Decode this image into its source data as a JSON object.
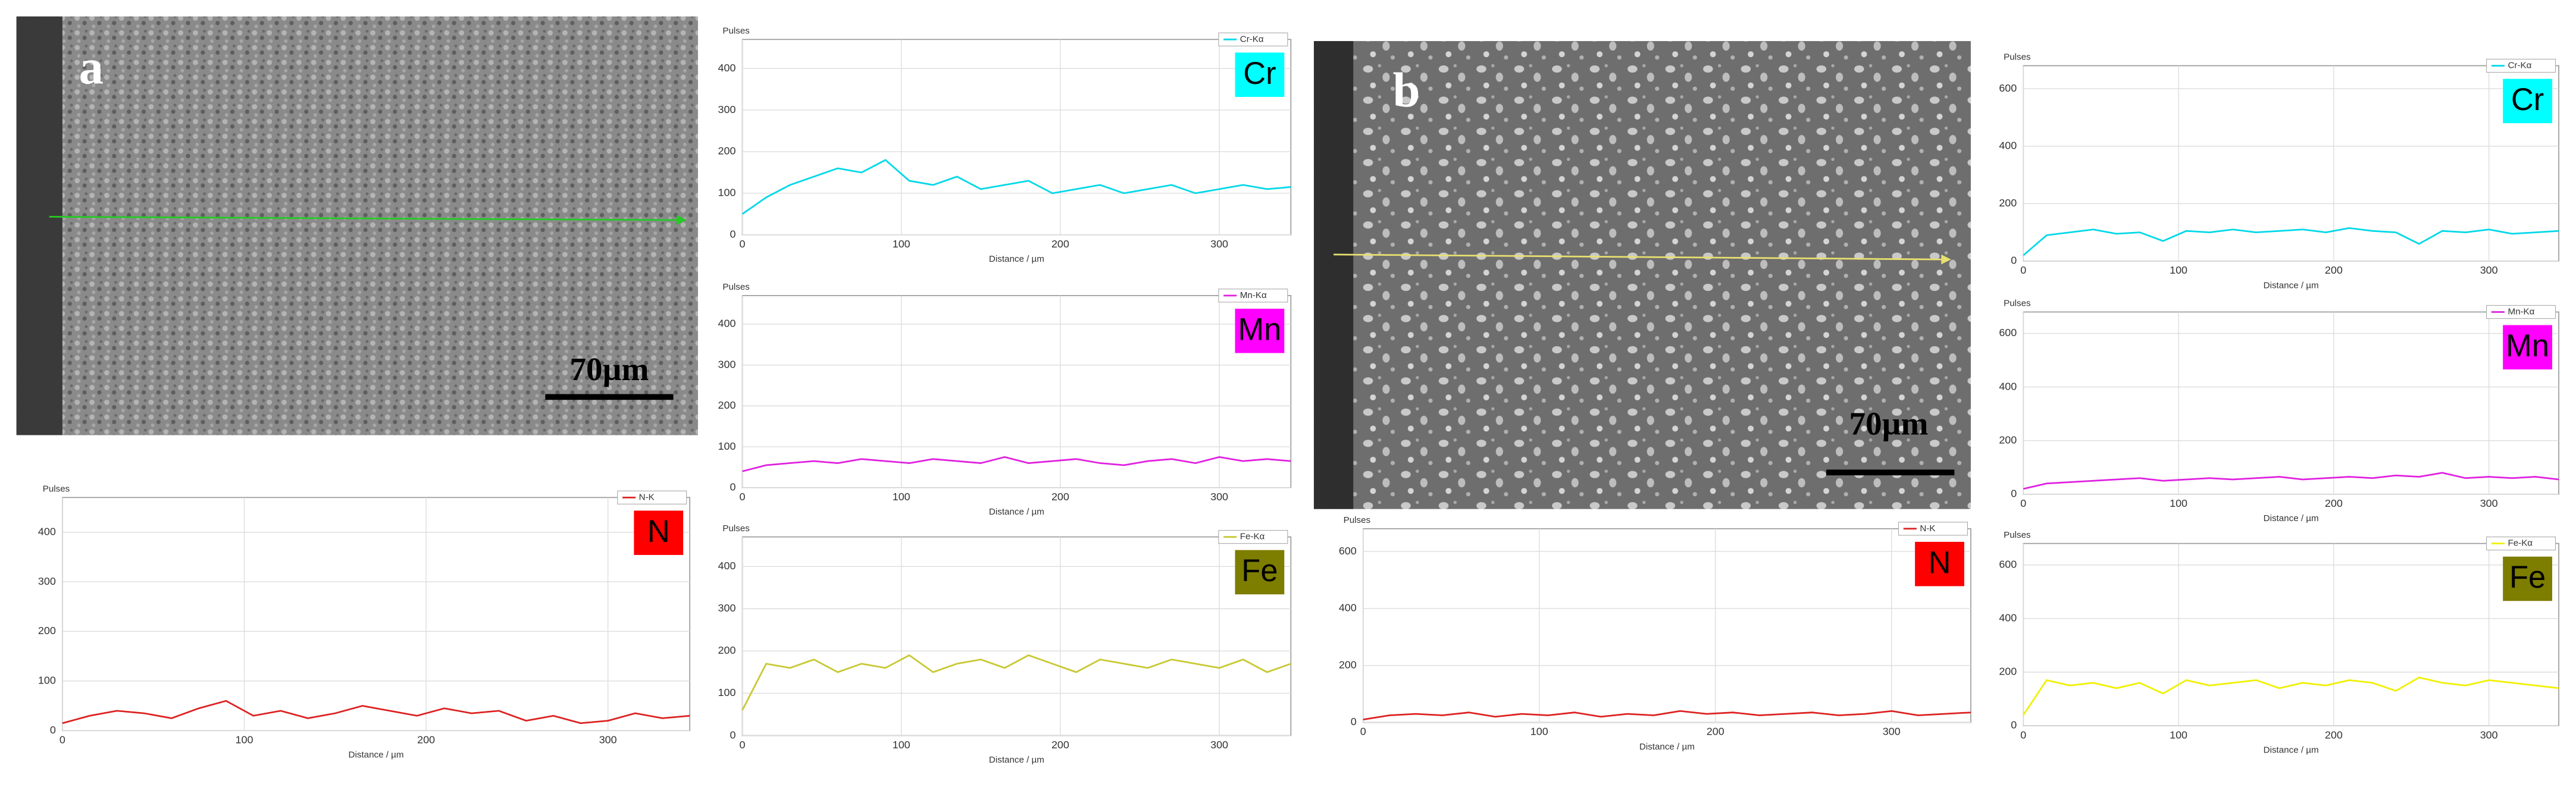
{
  "figure": {
    "panels": [
      {
        "label": "a",
        "scale_bar": "70µm"
      },
      {
        "label": "b",
        "scale_bar": "70µm"
      }
    ]
  },
  "chart_data": [
    {
      "type": "line",
      "ylabel": "Pulses",
      "xlabel": "Distance / µm",
      "element": "Cr",
      "element_color": "#00ffff",
      "x": [
        0,
        15,
        30,
        45,
        60,
        75,
        90,
        105,
        120,
        135,
        150,
        165,
        180,
        195,
        210,
        225,
        240,
        255,
        270,
        285,
        300,
        315,
        330,
        345
      ],
      "series": [
        {
          "name": "Cr-Kα",
          "color": "#00d8e8",
          "values": [
            50,
            90,
            120,
            140,
            160,
            150,
            180,
            130,
            120,
            140,
            110,
            120,
            130,
            100,
            110,
            120,
            100,
            110,
            120,
            100,
            110,
            120,
            110,
            115
          ]
        }
      ],
      "xlim": [
        0,
        345
      ],
      "ylim": [
        0,
        470
      ],
      "xticks": [
        0,
        100,
        200,
        300
      ],
      "yticks": [
        0,
        100,
        200,
        300,
        400
      ],
      "grid": true
    },
    {
      "type": "line",
      "ylabel": "Pulses",
      "xlabel": "Distance / µm",
      "element": "Mn",
      "element_color": "#ff00ff",
      "x": [
        0,
        15,
        30,
        45,
        60,
        75,
        90,
        105,
        120,
        135,
        150,
        165,
        180,
        195,
        210,
        225,
        240,
        255,
        270,
        285,
        300,
        315,
        330,
        345
      ],
      "series": [
        {
          "name": "Mn-Kα",
          "color": "#e020e0",
          "values": [
            40,
            55,
            60,
            65,
            60,
            70,
            65,
            60,
            70,
            65,
            60,
            75,
            60,
            65,
            70,
            60,
            55,
            65,
            70,
            60,
            75,
            65,
            70,
            65
          ]
        }
      ],
      "xlim": [
        0,
        345
      ],
      "ylim": [
        0,
        470
      ],
      "xticks": [
        0,
        100,
        200,
        300
      ],
      "yticks": [
        0,
        100,
        200,
        300,
        400
      ],
      "grid": true
    },
    {
      "type": "line",
      "ylabel": "Pulses",
      "xlabel": "Distance / µm",
      "element": "N",
      "element_color": "#ff0000",
      "x": [
        0,
        15,
        30,
        45,
        60,
        75,
        90,
        105,
        120,
        135,
        150,
        165,
        180,
        195,
        210,
        225,
        240,
        255,
        270,
        285,
        300,
        315,
        330,
        345
      ],
      "series": [
        {
          "name": "N-K",
          "color": "#dd2222",
          "values": [
            15,
            30,
            40,
            35,
            25,
            45,
            60,
            30,
            40,
            25,
            35,
            50,
            40,
            30,
            45,
            35,
            40,
            20,
            30,
            15,
            20,
            35,
            25,
            30
          ]
        }
      ],
      "xlim": [
        0,
        345
      ],
      "ylim": [
        0,
        470
      ],
      "xticks": [
        0,
        100,
        200,
        300
      ],
      "yticks": [
        0,
        100,
        200,
        300,
        400
      ],
      "grid": true
    },
    {
      "type": "line",
      "ylabel": "Pulses",
      "xlabel": "Distance / µm",
      "element": "Fe",
      "element_color": "#7d7d00",
      "x": [
        0,
        15,
        30,
        45,
        60,
        75,
        90,
        105,
        120,
        135,
        150,
        165,
        180,
        195,
        210,
        225,
        240,
        255,
        270,
        285,
        300,
        315,
        330,
        345
      ],
      "series": [
        {
          "name": "Fe-Kα",
          "color": "#c8c832",
          "values": [
            60,
            170,
            160,
            180,
            150,
            170,
            160,
            190,
            150,
            170,
            180,
            160,
            190,
            170,
            150,
            180,
            170,
            160,
            180,
            170,
            160,
            180,
            150,
            170
          ]
        }
      ],
      "xlim": [
        0,
        345
      ],
      "ylim": [
        0,
        470
      ],
      "xticks": [
        0,
        100,
        200,
        300
      ],
      "yticks": [
        0,
        100,
        200,
        300,
        400
      ],
      "grid": true
    },
    {
      "type": "line",
      "ylabel": "Pulses",
      "xlabel": "Distance / µm",
      "element": "Cr",
      "element_color": "#00ffff",
      "x": [
        0,
        15,
        30,
        45,
        60,
        75,
        90,
        105,
        120,
        135,
        150,
        165,
        180,
        195,
        210,
        225,
        240,
        255,
        270,
        285,
        300,
        315,
        330,
        345
      ],
      "series": [
        {
          "name": "Cr-Kα",
          "color": "#00d8e8",
          "values": [
            20,
            90,
            100,
            110,
            95,
            100,
            70,
            105,
            100,
            110,
            100,
            105,
            110,
            100,
            115,
            105,
            100,
            60,
            105,
            100,
            110,
            95,
            100,
            105
          ]
        }
      ],
      "xlim": [
        0,
        345
      ],
      "ylim": [
        0,
        680
      ],
      "xticks": [
        0,
        100,
        200,
        300
      ],
      "yticks": [
        0,
        200,
        400,
        600
      ],
      "grid": true
    },
    {
      "type": "line",
      "ylabel": "Pulses",
      "xlabel": "Distance / µm",
      "element": "Mn",
      "element_color": "#ff00ff",
      "x": [
        0,
        15,
        30,
        45,
        60,
        75,
        90,
        105,
        120,
        135,
        150,
        165,
        180,
        195,
        210,
        225,
        240,
        255,
        270,
        285,
        300,
        315,
        330,
        345
      ],
      "series": [
        {
          "name": "Mn-Kα",
          "color": "#e020e0",
          "values": [
            20,
            40,
            45,
            50,
            55,
            60,
            50,
            55,
            60,
            55,
            60,
            65,
            55,
            60,
            65,
            60,
            70,
            65,
            80,
            60,
            65,
            60,
            65,
            55
          ]
        }
      ],
      "xlim": [
        0,
        345
      ],
      "ylim": [
        0,
        680
      ],
      "xticks": [
        0,
        100,
        200,
        300
      ],
      "yticks": [
        0,
        200,
        400,
        600
      ],
      "grid": true
    },
    {
      "type": "line",
      "ylabel": "Pulses",
      "xlabel": "Distance / µm",
      "element": "N",
      "element_color": "#ff0000",
      "x": [
        0,
        15,
        30,
        45,
        60,
        75,
        90,
        105,
        120,
        135,
        150,
        165,
        180,
        195,
        210,
        225,
        240,
        255,
        270,
        285,
        300,
        315,
        330,
        345
      ],
      "series": [
        {
          "name": "N-K",
          "color": "#dd2222",
          "values": [
            10,
            25,
            30,
            25,
            35,
            20,
            30,
            25,
            35,
            20,
            30,
            25,
            40,
            30,
            35,
            25,
            30,
            35,
            25,
            30,
            40,
            25,
            30,
            35
          ]
        }
      ],
      "xlim": [
        0,
        345
      ],
      "ylim": [
        0,
        680
      ],
      "xticks": [
        0,
        100,
        200,
        300
      ],
      "yticks": [
        0,
        200,
        400,
        600
      ],
      "grid": true
    },
    {
      "type": "line",
      "ylabel": "Pulses",
      "xlabel": "Distance / µm",
      "element": "Fe",
      "element_color": "#7d7d00",
      "x": [
        0,
        15,
        30,
        45,
        60,
        75,
        90,
        105,
        120,
        135,
        150,
        165,
        180,
        195,
        210,
        225,
        240,
        255,
        270,
        285,
        300,
        315,
        330,
        345
      ],
      "series": [
        {
          "name": "Fe-Kα",
          "color": "#f0f000",
          "values": [
            40,
            170,
            150,
            160,
            140,
            160,
            120,
            170,
            150,
            160,
            170,
            140,
            160,
            150,
            170,
            160,
            130,
            180,
            160,
            150,
            170,
            160,
            150,
            140
          ]
        }
      ],
      "xlim": [
        0,
        345
      ],
      "ylim": [
        0,
        680
      ],
      "xticks": [
        0,
        100,
        200,
        300
      ],
      "yticks": [
        0,
        200,
        400,
        600
      ],
      "grid": true
    }
  ]
}
